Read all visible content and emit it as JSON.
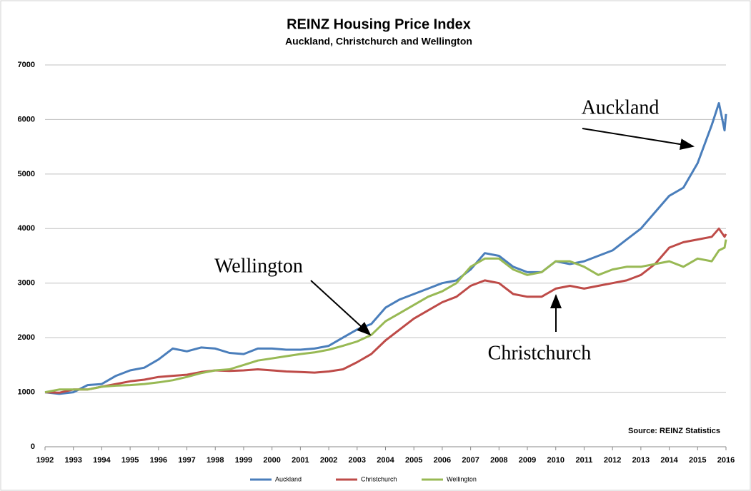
{
  "chart_data": {
    "type": "line",
    "title": "REINZ Housing Price Index",
    "subtitle": "Auckland, Christchurch and Wellington",
    "source": "Source: REINZ Statistics",
    "annotations": [
      "Auckland",
      "Wellington",
      "Christchurch"
    ],
    "x": [
      1992,
      1992.5,
      1993,
      1993.5,
      1994,
      1994.5,
      1995,
      1995.5,
      1996,
      1996.5,
      1997,
      1997.5,
      1998,
      1998.5,
      1999,
      1999.5,
      2000,
      2000.5,
      2001,
      2001.5,
      2002,
      2002.5,
      2003,
      2003.5,
      2004,
      2004.5,
      2005,
      2005.5,
      2006,
      2006.5,
      2007,
      2007.5,
      2008,
      2008.5,
      2009,
      2009.5,
      2010,
      2010.5,
      2011,
      2011.5,
      2012,
      2012.5,
      2013,
      2013.5,
      2014,
      2014.5,
      2015,
      2015.5,
      2015.75,
      2015.95,
      2016
    ],
    "series": [
      {
        "name": "Auckland",
        "color": "#4a7ebb",
        "values": [
          1000,
          970,
          1000,
          1130,
          1150,
          1300,
          1400,
          1450,
          1600,
          1800,
          1750,
          1820,
          1800,
          1720,
          1700,
          1800,
          1800,
          1780,
          1780,
          1800,
          1850,
          2000,
          2150,
          2250,
          2550,
          2700,
          2800,
          2900,
          3000,
          3050,
          3250,
          3550,
          3500,
          3300,
          3200,
          3200,
          3400,
          3350,
          3400,
          3500,
          3600,
          3800,
          4000,
          4300,
          4600,
          4750,
          5200,
          5900,
          6300,
          5800,
          6100
        ]
      },
      {
        "name": "Christchurch",
        "color": "#be4b48",
        "values": [
          1000,
          990,
          1050,
          1050,
          1100,
          1150,
          1200,
          1230,
          1280,
          1300,
          1320,
          1370,
          1400,
          1390,
          1400,
          1420,
          1400,
          1380,
          1370,
          1360,
          1380,
          1420,
          1550,
          1700,
          1950,
          2150,
          2350,
          2500,
          2650,
          2750,
          2950,
          3050,
          3000,
          2800,
          2750,
          2750,
          2900,
          2950,
          2900,
          2950,
          3000,
          3050,
          3150,
          3350,
          3650,
          3750,
          3800,
          3850,
          4000,
          3850,
          3900
        ]
      },
      {
        "name": "Wellington",
        "color": "#98b954",
        "values": [
          1000,
          1050,
          1050,
          1050,
          1100,
          1120,
          1130,
          1150,
          1180,
          1220,
          1280,
          1350,
          1400,
          1420,
          1500,
          1580,
          1620,
          1660,
          1700,
          1730,
          1780,
          1850,
          1930,
          2050,
          2300,
          2450,
          2600,
          2750,
          2850,
          3000,
          3300,
          3450,
          3450,
          3250,
          3150,
          3200,
          3400,
          3400,
          3300,
          3150,
          3250,
          3300,
          3300,
          3350,
          3400,
          3300,
          3450,
          3400,
          3600,
          3650,
          3800
        ]
      }
    ],
    "xlim": [
      1992,
      2016
    ],
    "xticks": [
      1992,
      1993,
      1994,
      1995,
      1996,
      1997,
      1998,
      1999,
      2000,
      2001,
      2002,
      2003,
      2004,
      2005,
      2006,
      2007,
      2008,
      2009,
      2010,
      2011,
      2012,
      2013,
      2014,
      2015,
      2016
    ],
    "ylim": [
      0,
      7000
    ],
    "yticks": [
      0,
      1000,
      2000,
      3000,
      4000,
      5000,
      6000,
      7000
    ],
    "grid": true,
    "legend": "bottom"
  }
}
